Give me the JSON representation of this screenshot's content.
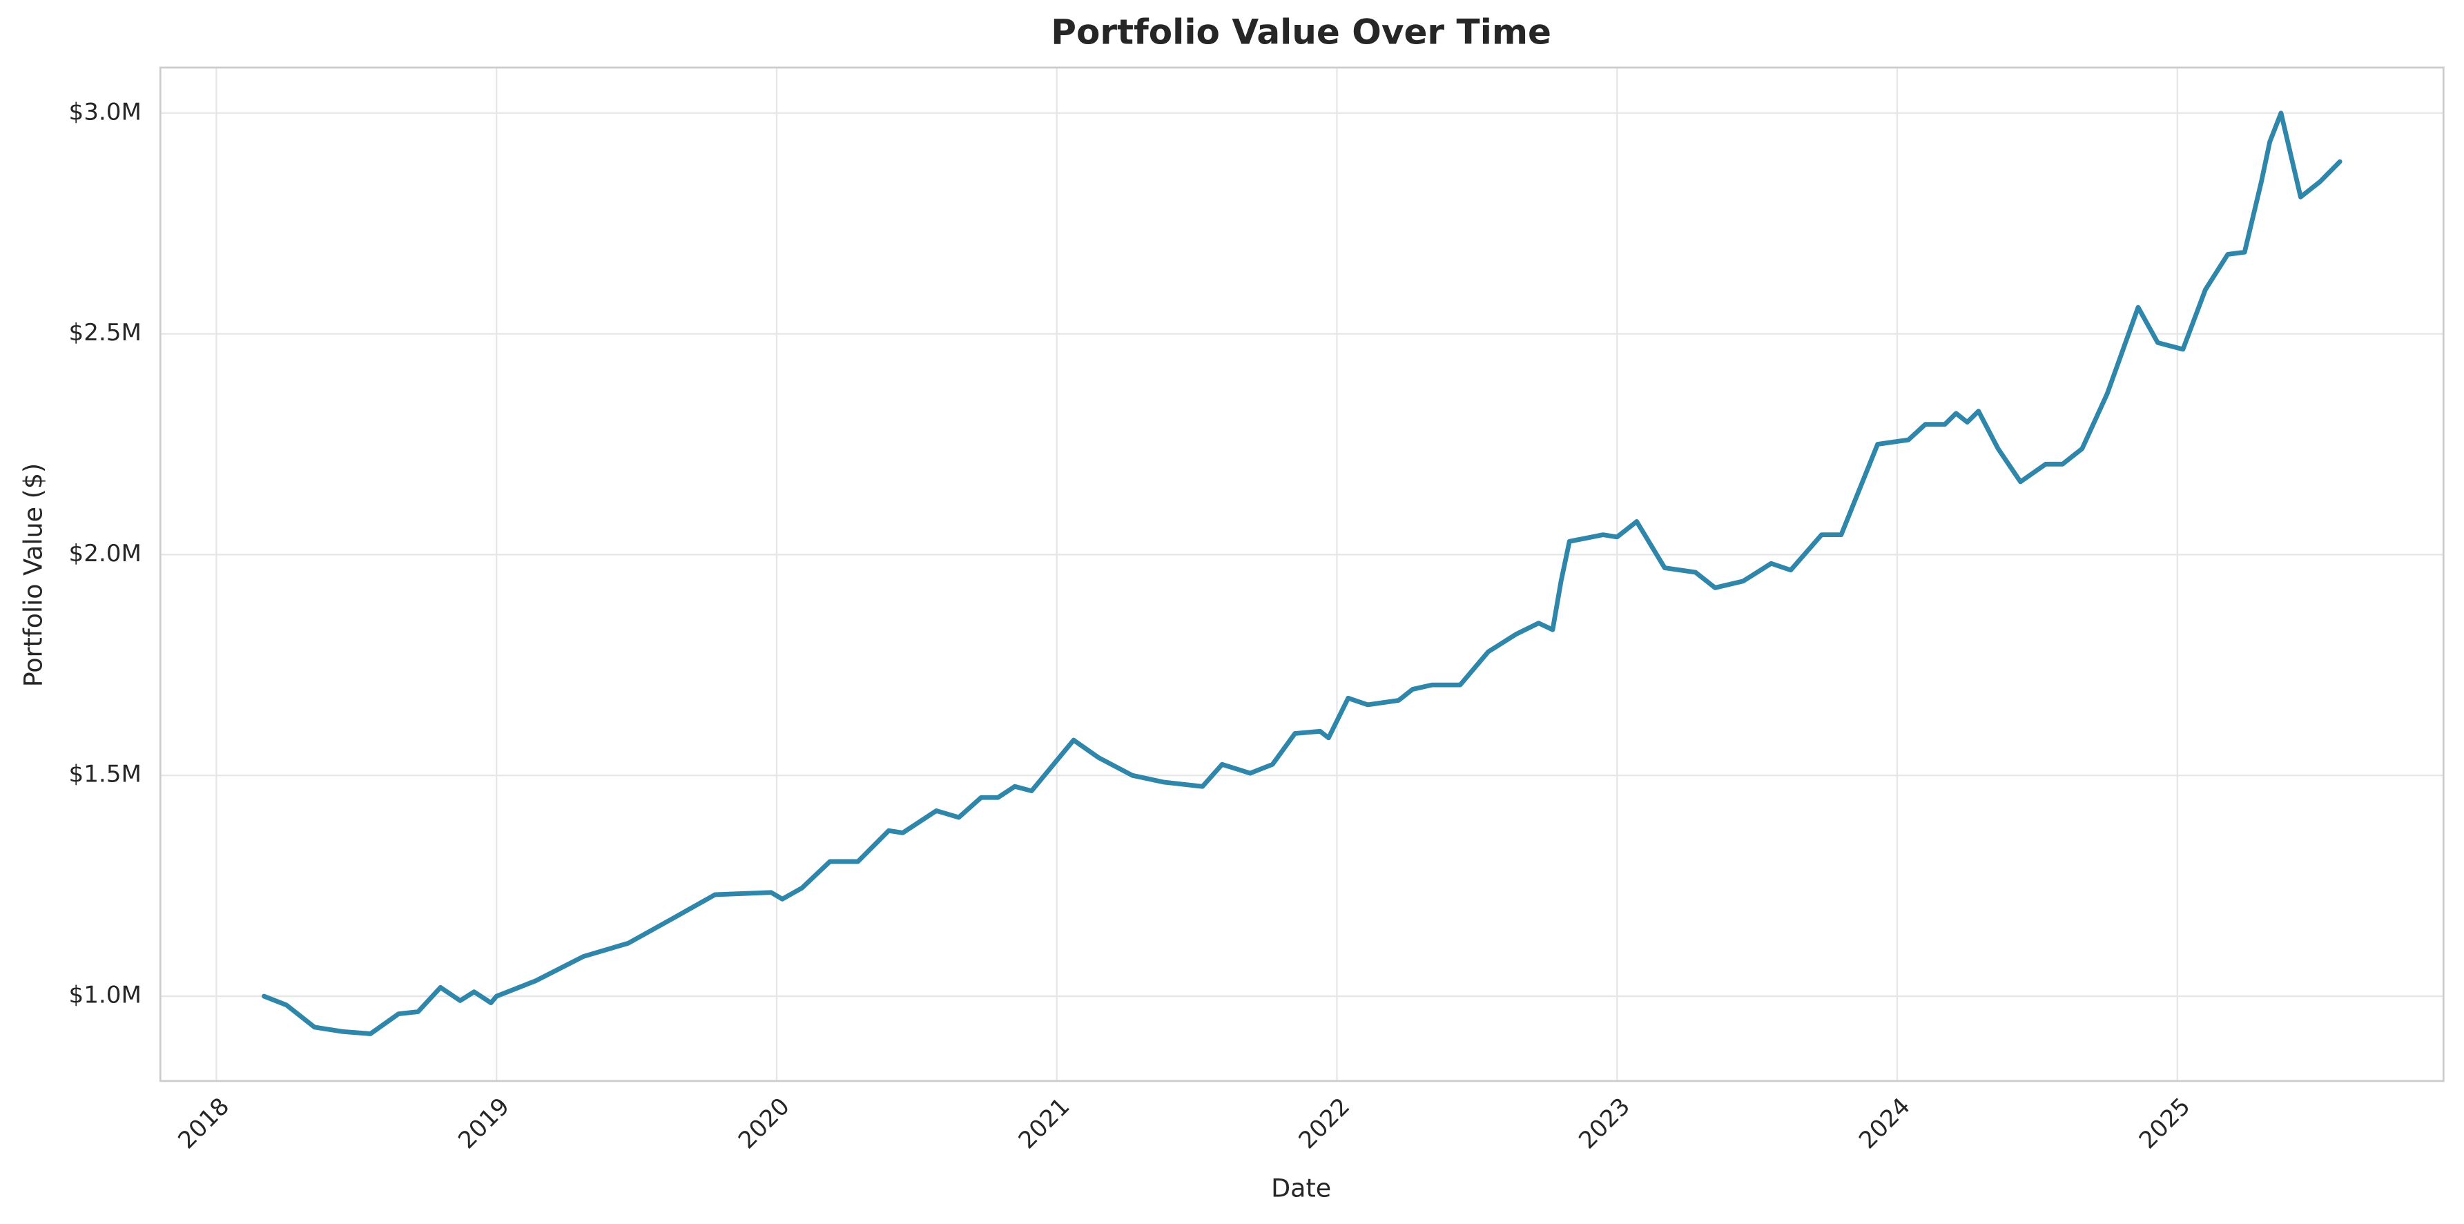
{
  "chart_data": {
    "type": "line",
    "title": "Portfolio Value Over Time",
    "xlabel": "Date",
    "ylabel": "Portfolio Value ($)",
    "color": "#2e86ab",
    "grid": true,
    "xlim": [
      2017.8,
      2025.95
    ],
    "ylim": [
      808000,
      3103000
    ],
    "xticks": [
      2018,
      2019,
      2020,
      2021,
      2022,
      2023,
      2024,
      2025
    ],
    "yticks": [
      {
        "value": 1000000,
        "label": "$1.0M"
      },
      {
        "value": 1500000,
        "label": "$1.5M"
      },
      {
        "value": 2000000,
        "label": "$2.0M"
      },
      {
        "value": 2500000,
        "label": "$2.5M"
      },
      {
        "value": 3000000,
        "label": "$3.0M"
      }
    ],
    "x": [
      2018.17,
      2018.25,
      2018.35,
      2018.45,
      2018.55,
      2018.65,
      2018.72,
      2018.8,
      2018.87,
      2018.92,
      2018.98,
      2019.0,
      2019.14,
      2019.31,
      2019.47,
      2019.64,
      2019.78,
      2019.98,
      2020.02,
      2020.09,
      2020.19,
      2020.29,
      2020.4,
      2020.45,
      2020.57,
      2020.65,
      2020.73,
      2020.79,
      2020.85,
      2020.91,
      2021.06,
      2021.15,
      2021.27,
      2021.38,
      2021.52,
      2021.59,
      2021.69,
      2021.77,
      2021.85,
      2021.94,
      2021.97,
      2022.04,
      2022.11,
      2022.22,
      2022.27,
      2022.34,
      2022.44,
      2022.54,
      2022.64,
      2022.72,
      2022.77,
      2022.8,
      2022.83,
      2022.95,
      2023.0,
      2023.07,
      2023.17,
      2023.28,
      2023.35,
      2023.45,
      2023.55,
      2023.62,
      2023.73,
      2023.8,
      2023.93,
      2024.04,
      2024.1,
      2024.17,
      2024.21,
      2024.25,
      2024.29,
      2024.36,
      2024.44,
      2024.53,
      2024.59,
      2024.66,
      2024.75,
      2024.86,
      2024.93,
      2025.02,
      2025.1,
      2025.18,
      2025.24,
      2025.3,
      2025.33,
      2025.37,
      2025.44,
      2025.51,
      2025.58
    ],
    "values": [
      1000000,
      980000,
      930000,
      920000,
      915000,
      960000,
      965000,
      1020000,
      990000,
      1010000,
      985000,
      1000000,
      1035000,
      1090000,
      1120000,
      1180000,
      1230000,
      1235000,
      1220000,
      1245000,
      1305000,
      1305000,
      1375000,
      1370000,
      1420000,
      1405000,
      1450000,
      1450000,
      1475000,
      1465000,
      1580000,
      1540000,
      1500000,
      1485000,
      1475000,
      1525000,
      1505000,
      1525000,
      1595000,
      1600000,
      1585000,
      1675000,
      1660000,
      1670000,
      1695000,
      1705000,
      1705000,
      1780000,
      1820000,
      1845000,
      1830000,
      1940000,
      2030000,
      2045000,
      2040000,
      2075000,
      1970000,
      1960000,
      1925000,
      1940000,
      1980000,
      1965000,
      2045000,
      2045000,
      2250000,
      2260000,
      2295000,
      2295000,
      2320000,
      2300000,
      2325000,
      2240000,
      2165000,
      2205000,
      2205000,
      2240000,
      2365000,
      2560000,
      2480000,
      2465000,
      2600000,
      2680000,
      2685000,
      2845000,
      2935000,
      3000000,
      2810000,
      2845000,
      2890000
    ]
  }
}
